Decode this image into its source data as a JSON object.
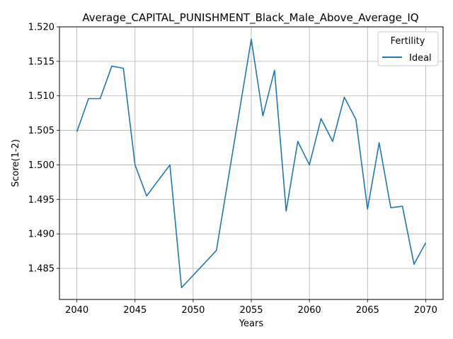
{
  "chart_data": {
    "type": "line",
    "title": "Average_CAPITAL_PUNISHMENT_Black_Male_Above_Average_IQ",
    "xlabel": "Years",
    "ylabel": "Score(1-2)",
    "xlim": [
      2038.5,
      2071.5
    ],
    "ylim": [
      1.4805,
      1.52
    ],
    "xticks": [
      2040,
      2045,
      2050,
      2055,
      2060,
      2065,
      2070
    ],
    "yticks": [
      1.485,
      1.49,
      1.495,
      1.5,
      1.505,
      1.51,
      1.515,
      1.52
    ],
    "ytick_labels": [
      "1.485",
      "1.490",
      "1.495",
      "1.500",
      "1.505",
      "1.510",
      "1.515",
      "1.520"
    ],
    "grid": true,
    "legend": {
      "title": "Fertility",
      "placement": "top-right"
    },
    "series": [
      {
        "name": "Ideal",
        "color": "#1f77b4",
        "x": [
          2040,
          2041,
          2042,
          2043,
          2044,
          2045,
          2046,
          2048,
          2049,
          2052,
          2055,
          2056,
          2057,
          2058,
          2059,
          2060,
          2061,
          2062,
          2063,
          2064,
          2065,
          2066,
          2067,
          2068,
          2069,
          2070
        ],
        "y": [
          1.5048,
          1.5096,
          1.5096,
          1.5143,
          1.514,
          1.5,
          1.4955,
          1.5,
          1.4822,
          1.4876,
          1.5182,
          1.5071,
          1.5137,
          1.4933,
          1.5034,
          1.5,
          1.5067,
          1.5034,
          1.5098,
          1.5066,
          1.4936,
          1.5032,
          1.4938,
          1.494,
          1.4856,
          1.4887
        ]
      }
    ]
  }
}
